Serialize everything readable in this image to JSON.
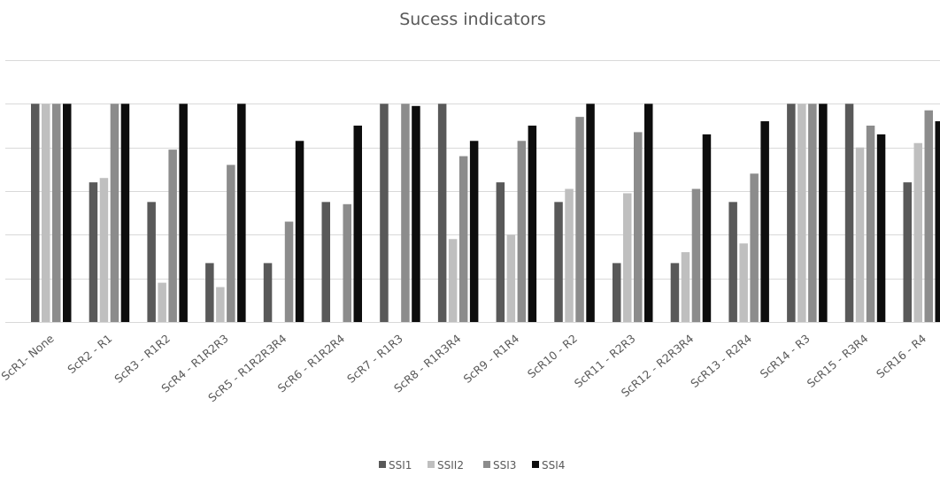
{
  "chart_data": {
    "type": "bar",
    "title": "Sucess indicators",
    "xlabel": "",
    "ylabel": "",
    "ylim": [
      0,
      6
    ],
    "grid": true,
    "legend_position": "bottom",
    "categories": [
      "ScR1- None",
      "ScR2 - R1",
      "ScR3 - R1R2",
      "ScR4 - R1R2R3",
      "ScR5 - R1R2R3R4",
      "ScR6 - R1R2R4",
      "ScR7 - R1R3",
      "ScR8 - R1R3R4",
      "ScR9 - R1R4",
      "ScR10 - R2",
      "ScR11 - R2R3",
      "ScR12 - R2R3R4",
      "ScR13 - R2R4",
      "ScR14 - R3",
      "ScR15 - R3R4",
      "ScR16 - R4"
    ],
    "series": [
      {
        "name": "SSI1",
        "color": "#595959",
        "values": [
          5,
          3.2,
          2.75,
          1.35,
          1.35,
          2.75,
          5,
          5,
          3.2,
          2.75,
          1.35,
          1.35,
          2.75,
          5,
          5,
          3.2
        ]
      },
      {
        "name": "SSII2",
        "color": "#bfbfbf",
        "values": [
          5,
          3.3,
          0.9,
          0.8,
          0,
          0,
          0,
          1.9,
          2.0,
          3.05,
          2.95,
          1.6,
          1.8,
          5,
          4.0,
          4.1
        ]
      },
      {
        "name": "SSI3",
        "color": "#8c8c8c",
        "values": [
          5,
          5,
          3.95,
          3.6,
          2.3,
          2.7,
          5,
          3.8,
          4.15,
          4.7,
          4.35,
          3.05,
          3.4,
          5,
          4.5,
          4.85
        ]
      },
      {
        "name": "SSI4",
        "color": "#0d0d0d",
        "values": [
          5,
          5,
          5,
          5,
          4.15,
          4.5,
          4.95,
          4.15,
          4.5,
          5,
          5,
          4.3,
          4.6,
          5,
          4.3,
          4.6
        ]
      }
    ]
  }
}
